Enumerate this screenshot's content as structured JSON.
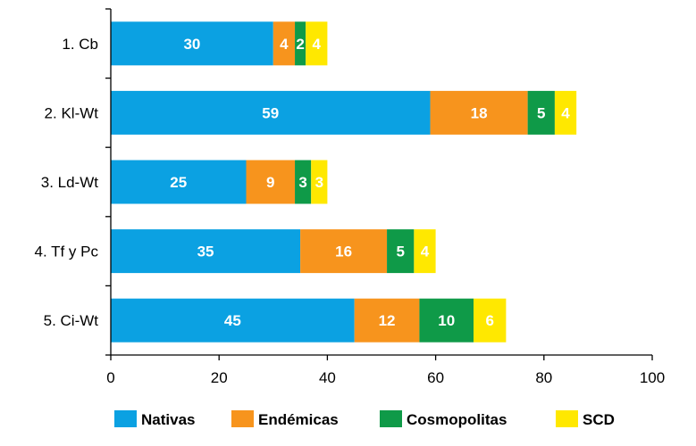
{
  "chart_data": {
    "type": "bar",
    "orientation": "horizontal",
    "stacked": true,
    "categories": [
      "1. Cb",
      "2. Kl-Wt",
      "3. Ld-Wt",
      "4. Tf y Pc",
      "5. Ci-Wt"
    ],
    "series": [
      {
        "name": "Nativas",
        "color": "#0ba1e2",
        "values": [
          30,
          59,
          25,
          35,
          45
        ]
      },
      {
        "name": "Endémicas",
        "color": "#f7941d",
        "values": [
          4,
          18,
          9,
          16,
          12
        ]
      },
      {
        "name": "Cosmopolitas",
        "color": "#0f9a48",
        "values": [
          2,
          5,
          3,
          5,
          10
        ]
      },
      {
        "name": "SCD",
        "color": "#ffe800",
        "values": [
          4,
          4,
          3,
          4,
          6
        ]
      }
    ],
    "xlim": [
      0,
      100
    ],
    "xticks": [
      0,
      20,
      40,
      60,
      80,
      100
    ],
    "grid": false,
    "legend": "bottom",
    "title": "",
    "xlabel": "",
    "ylabel": ""
  }
}
